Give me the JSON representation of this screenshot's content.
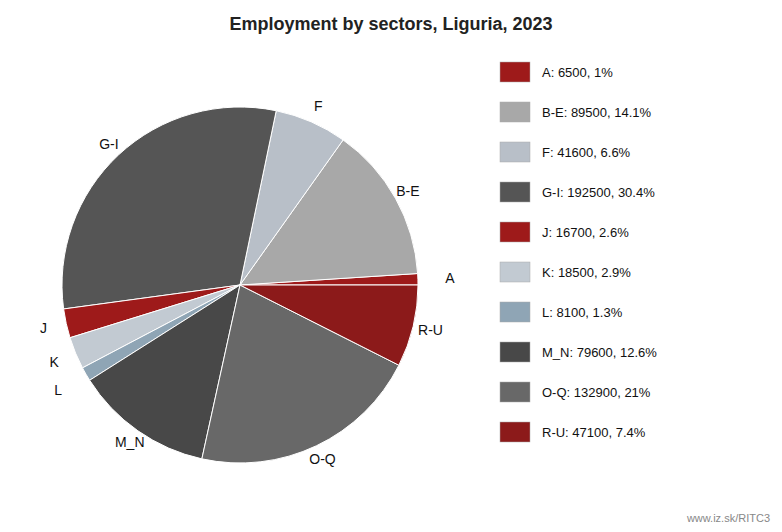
{
  "chart_data": {
    "type": "pie",
    "title": "Employment by sectors, Liguria, 2023",
    "categories": [
      "A",
      "B-E",
      "F",
      "G-I",
      "J",
      "K",
      "L",
      "M_N",
      "O-Q",
      "R-U"
    ],
    "values": [
      6500,
      89500,
      41600,
      192500,
      16700,
      18500,
      8100,
      79600,
      132900,
      47100
    ],
    "percentages": [
      1.0,
      14.1,
      6.6,
      30.4,
      2.6,
      2.9,
      1.3,
      12.6,
      21.0,
      7.4
    ],
    "value_labels": [
      "A: 6500, 1%",
      "B-E: 89500, 14.1%",
      "F: 41600, 6.6%",
      "G-I: 192500, 30.4%",
      "J: 16700, 2.6%",
      "K: 18500, 2.9%",
      "L: 8100, 1.3%",
      "M_N: 79600, 12.6%",
      "O-Q: 132900, 21%",
      "R-U: 47100, 7.4%"
    ],
    "colors": [
      "#9e1a1a",
      "#a8a8a8",
      "#b8bfc8",
      "#555555",
      "#9e1a1a",
      "#c2cad2",
      "#8fa5b5",
      "#484848",
      "#686868",
      "#8c1a1a"
    ],
    "legend": "right",
    "annotation": "www.iz.sk/RITC3"
  }
}
